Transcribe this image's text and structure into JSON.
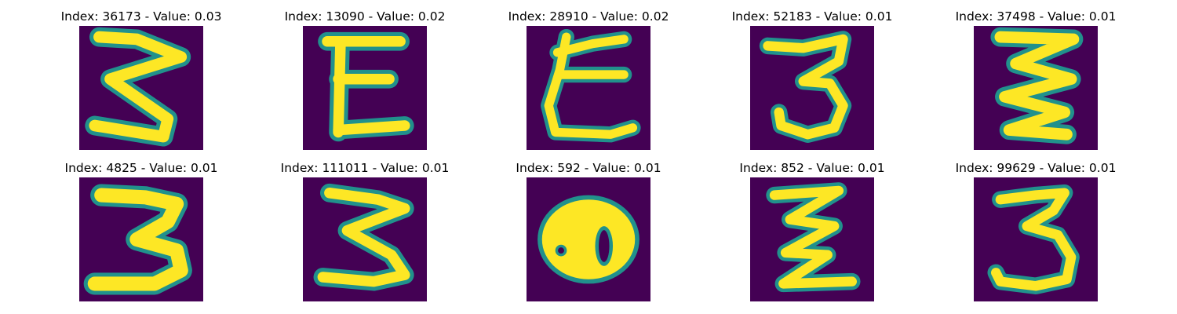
{
  "figure": {
    "background_color": "#440154",
    "stroke_color": "#fde725",
    "edge_color": "#21918c",
    "panels": [
      {
        "index_label": "Index:",
        "index_value": "36173",
        "value_label": "Value:",
        "value": "0.03",
        "glyph": "3"
      },
      {
        "index_label": "Index:",
        "index_value": "13090",
        "value_label": "Value:",
        "value": "0.02",
        "glyph": "E"
      },
      {
        "index_label": "Index:",
        "index_value": "28910",
        "value_label": "Value:",
        "value": "0.02",
        "glyph": "E"
      },
      {
        "index_label": "Index:",
        "index_value": "52183",
        "value_label": "Value:",
        "value": "0.01",
        "glyph": "3"
      },
      {
        "index_label": "Index:",
        "index_value": "37498",
        "value_label": "Value:",
        "value": "0.01",
        "glyph": "3"
      },
      {
        "index_label": "Index:",
        "index_value": "4825",
        "value_label": "Value:",
        "value": "0.01",
        "glyph": "3"
      },
      {
        "index_label": "Index:",
        "index_value": "111011",
        "value_label": "Value:",
        "value": "0.01",
        "glyph": "3"
      },
      {
        "index_label": "Index:",
        "index_value": "592",
        "value_label": "Value:",
        "value": "0.01",
        "glyph": "8"
      },
      {
        "index_label": "Index:",
        "index_value": "852",
        "value_label": "Value:",
        "value": "0.01",
        "glyph": "Z"
      },
      {
        "index_label": "Index:",
        "index_value": "99629",
        "value_label": "Value:",
        "value": "0.01",
        "glyph": "3"
      }
    ]
  }
}
